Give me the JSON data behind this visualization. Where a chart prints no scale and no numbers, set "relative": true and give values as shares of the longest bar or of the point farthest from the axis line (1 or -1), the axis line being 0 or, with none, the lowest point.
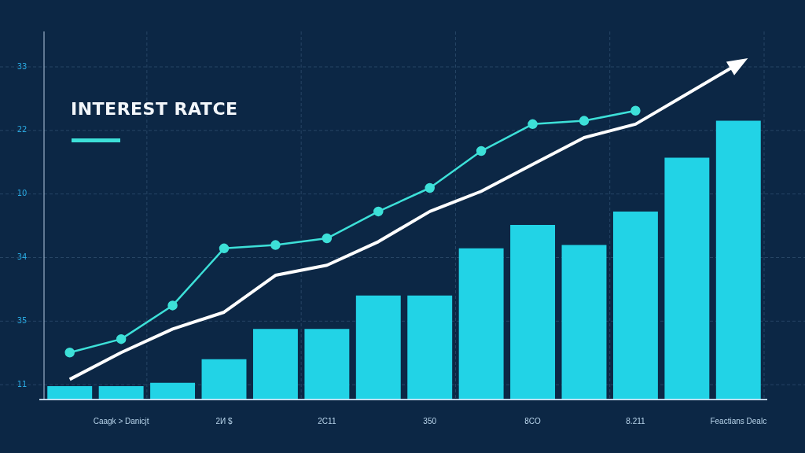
{
  "chart_data": {
    "type": "bar",
    "title": "INTEREST RATCE",
    "relative": true,
    "grid": true,
    "marker": "circle",
    "categories": [
      null,
      "Caagk > Danicjt",
      null,
      "2И $",
      null,
      "2C11",
      null,
      "350",
      null,
      "8CO",
      null,
      "8.211",
      null,
      "Feactians Dealc"
    ],
    "series": [
      {
        "color": "#22d3e6",
        "values": [
          0.04,
          0.04,
          0.05,
          0.12,
          0.21,
          0.21,
          0.31,
          0.31,
          0.45,
          0.52,
          0.46,
          0.56,
          0.72,
          0.83
        ]
      },
      {
        "type": "line",
        "color": "#3de0d8",
        "values": [
          0.14,
          0.18,
          0.28,
          0.45,
          0.46,
          0.48,
          0.56,
          0.63,
          0.74,
          0.82,
          0.83,
          0.86,
          null,
          null
        ]
      },
      {
        "type": "line",
        "color": "#ffffff",
        "marker": "none",
        "values": [
          0.06,
          0.14,
          0.21,
          0.26,
          0.37,
          0.4,
          0.47,
          0.56,
          0.62,
          0.7,
          0.78,
          0.82,
          0.91,
          1
        ]
      }
    ],
    "annotations": [
      "33",
      "22",
      "10",
      "34",
      "35",
      "11"
    ]
  }
}
